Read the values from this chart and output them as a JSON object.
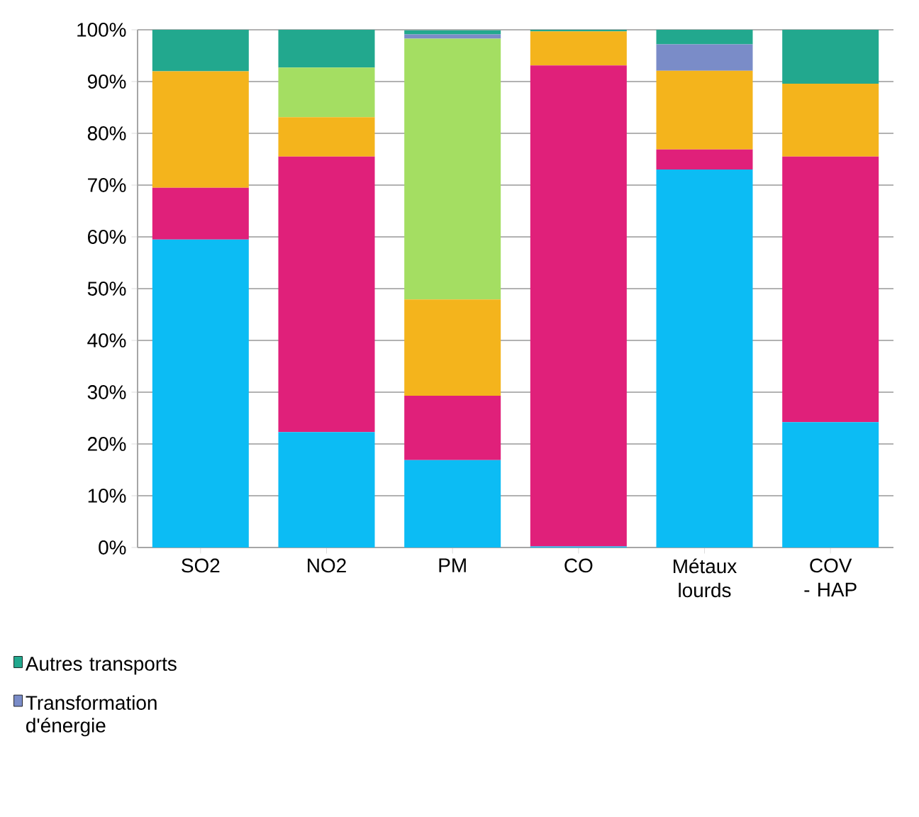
{
  "chart_data": {
    "type": "bar",
    "stacked": true,
    "categories": [
      "SO2",
      "NO2",
      "PM",
      "CO",
      "Métaux lourds",
      "COV - HAP"
    ],
    "series": [
      {
        "color": "#0cbcf4",
        "values": [
          59.5,
          22.3,
          16.9,
          0.2,
          73,
          24.2
        ]
      },
      {
        "color": "#e0207a",
        "values": [
          10,
          53.2,
          12.4,
          92.9,
          3.9,
          51.3
        ]
      },
      {
        "color": "#f4b41c",
        "values": [
          22.5,
          7.6,
          18.6,
          6.6,
          15.2,
          14.1
        ]
      },
      {
        "color": "#a4de62",
        "values": [
          0,
          9.6,
          50.4,
          0,
          0,
          0
        ]
      },
      {
        "name": "Transformation d'énergie",
        "color": "#7a8cc8",
        "values": [
          0,
          0,
          0.8,
          0,
          5.1,
          0
        ]
      },
      {
        "name": "Autres transports",
        "color": "#22a88e",
        "values": [
          8,
          7.3,
          0.8,
          0.3,
          2.8,
          10.4
        ]
      }
    ],
    "ylim": [
      0,
      100
    ],
    "yticks": [
      {
        "value": 0,
        "label": "0%"
      },
      {
        "value": 10,
        "label": "10%"
      },
      {
        "value": 20,
        "label": "20%"
      },
      {
        "value": 30,
        "label": "30%"
      },
      {
        "value": 40,
        "label": "40%"
      },
      {
        "value": 50,
        "label": "50%"
      },
      {
        "value": 60,
        "label": "60%"
      },
      {
        "value": 70,
        "label": "70%"
      },
      {
        "value": 80,
        "label": "80%"
      },
      {
        "value": 90,
        "label": "90%"
      },
      {
        "value": 100,
        "label": "100%"
      }
    ],
    "grid": "y",
    "legend": "bottom left"
  }
}
